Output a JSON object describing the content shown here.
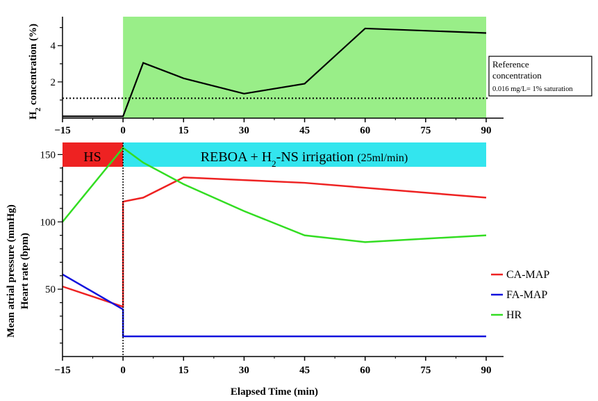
{
  "chart_data": [
    {
      "type": "line",
      "ylabel_main": "H",
      "ylabel_sub": "2",
      "ylabel_rest": " concentration (%)",
      "x": [
        -15,
        0,
        5,
        15,
        30,
        45,
        60,
        90
      ],
      "series": [
        {
          "name": "H2 concentration",
          "color": "#000000",
          "values": [
            0.1,
            0.1,
            3.05,
            2.2,
            1.35,
            1.9,
            4.95,
            4.7
          ]
        }
      ],
      "reference_line": 1.1,
      "shaded_band": [
        0,
        5.6
      ],
      "shade_color": "#99ee88",
      "xlim": [
        -15,
        90
      ],
      "ylim": [
        0,
        5.6
      ],
      "xticks": [
        "−15",
        "0",
        "15",
        "30",
        "45",
        "60",
        "75",
        "90"
      ],
      "xtick_values": [
        -15,
        0,
        15,
        30,
        45,
        60,
        75,
        90
      ],
      "yticks": [
        "2",
        "4"
      ],
      "ytick_values": [
        2,
        4
      ],
      "annotation": {
        "line1": "Reference",
        "line2": "concentration",
        "line3": "0.016 mg/L= 1% saturation"
      }
    },
    {
      "type": "line",
      "ylabel": "Mean atrial pressure (mmHg)",
      "ylabel2": "Heart rate (bpm)",
      "xlabel": "Elapsed Time (min)",
      "xlim": [
        -15,
        90
      ],
      "ylim": [
        0,
        160
      ],
      "xticks": [
        "−15",
        "0",
        "15",
        "30",
        "45",
        "60",
        "75",
        "90"
      ],
      "xtick_values": [
        -15,
        0,
        15,
        30,
        45,
        60,
        75,
        90
      ],
      "yticks": [
        "50",
        "100",
        "150"
      ],
      "ytick_values": [
        50,
        100,
        150
      ],
      "phases": [
        {
          "label": "HS",
          "start": -15,
          "end": 0,
          "color": "#ee2222"
        },
        {
          "label_main": "REBOA + H",
          "label_sub": "2",
          "label_rest": "-NS irrigation ",
          "label_small": "(25ml/min)",
          "start": 0,
          "end": 90,
          "color": "#33e5ee"
        }
      ],
      "series": [
        {
          "name": "CA-MAP",
          "color": "#ee2222",
          "x": [
            -15,
            0,
            0,
            5,
            15,
            45,
            90
          ],
          "values": [
            52,
            37,
            115,
            118,
            133,
            129,
            118
          ]
        },
        {
          "name": "FA-MAP",
          "color": "#1111dd",
          "x": [
            -15,
            0,
            0,
            90
          ],
          "values": [
            61,
            35,
            15,
            15
          ]
        },
        {
          "name": "HR",
          "color": "#33dd22",
          "x": [
            -15,
            0,
            5,
            15,
            30,
            45,
            60,
            90
          ],
          "values": [
            100,
            155,
            144,
            128,
            108,
            90,
            85,
            90
          ]
        }
      ]
    }
  ]
}
